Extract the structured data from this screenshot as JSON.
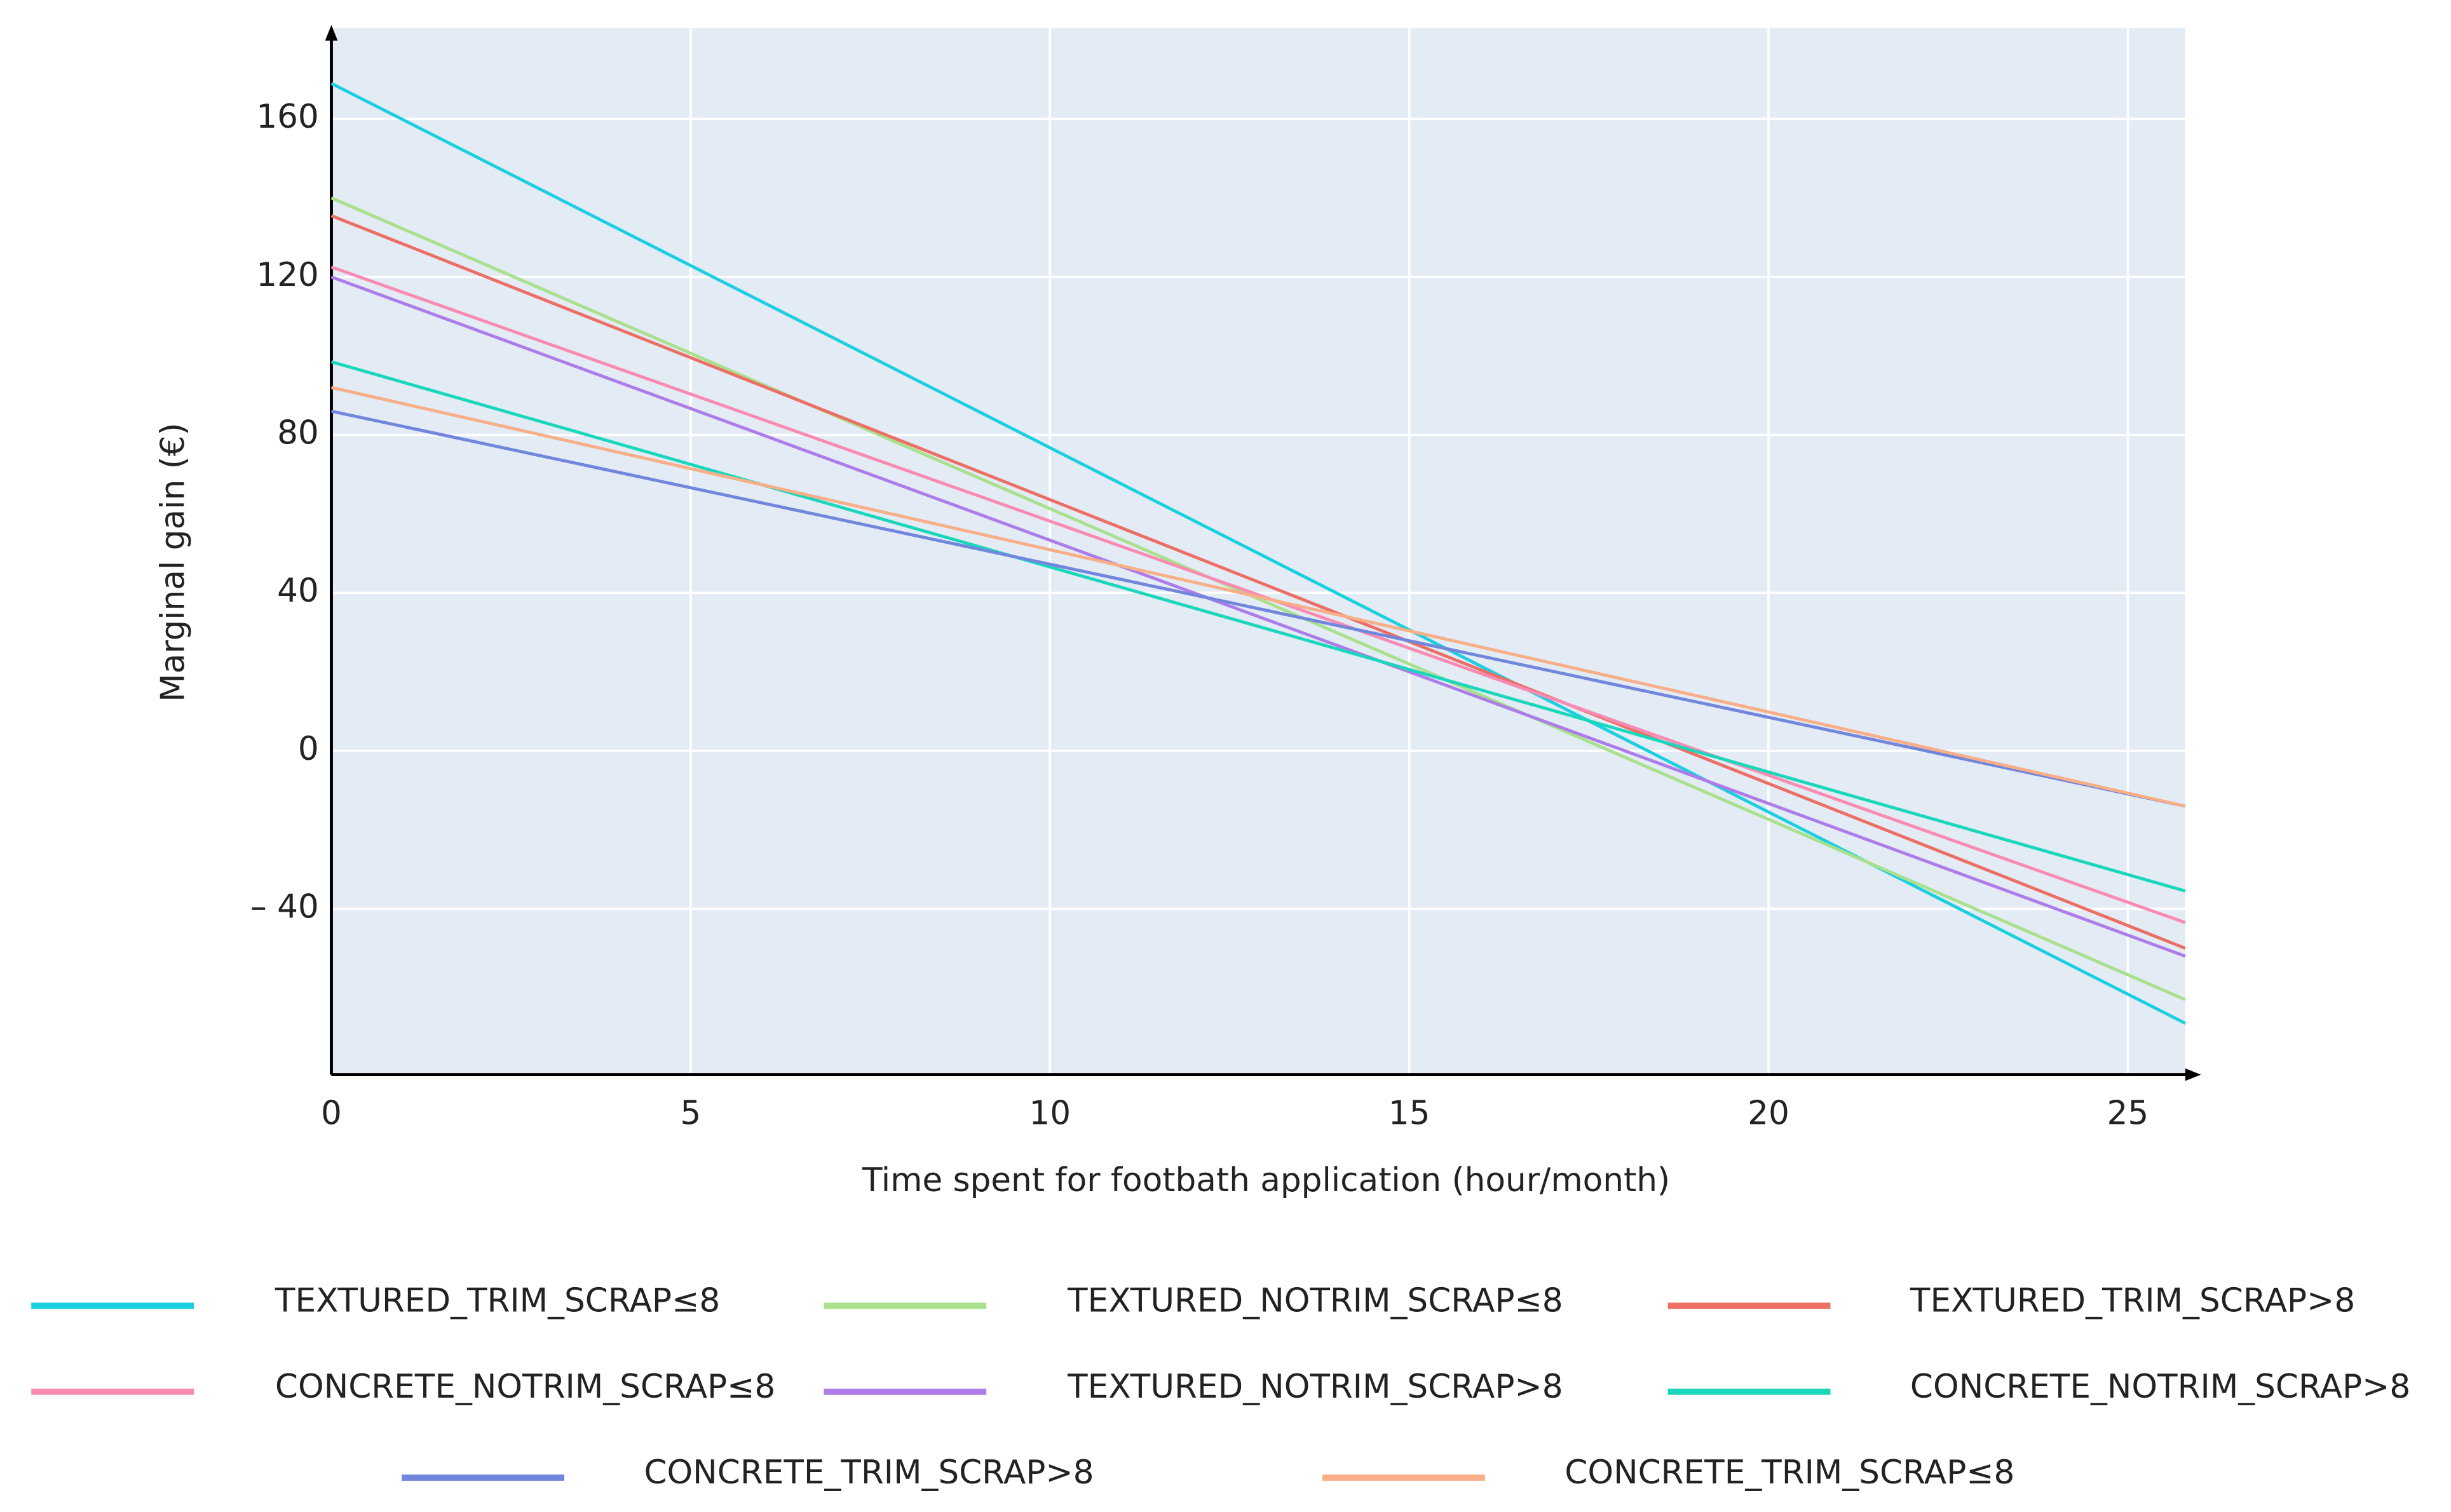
{
  "chart_data": {
    "type": "line",
    "x_label": "Time spent for footbath application (hour/month)",
    "y_label": "Marginal gain (€)",
    "x": [
      0,
      25.8
    ],
    "series": [
      {
        "name": "TEXTURED_TRIM_SCRAP≤8",
        "color": "#1ccfe0",
        "values": [
          169,
          -69
        ]
      },
      {
        "name": "TEXTURED_NOTRIM_SCRAP≤8",
        "color": "#a8e08c",
        "values": [
          140,
          -63
        ]
      },
      {
        "name": "TEXTURED_TRIM_SCRAP>8",
        "color": "#ec6f66",
        "values": [
          135.5,
          -50
        ]
      },
      {
        "name": "CONCRETE_NOTRIM_SCRAP≤8",
        "color": "#f98bb3",
        "values": [
          122.5,
          -43.5
        ]
      },
      {
        "name": "TEXTURED_NOTRIM_SCRAP>8",
        "color": "#ad7ce8",
        "values": [
          120,
          -52
        ]
      },
      {
        "name": "CONCRETE_NOTRIM_SCRAP>8",
        "color": "#1ad7bc",
        "values": [
          98.5,
          -35.5
        ]
      },
      {
        "name": "CONCRETE_TRIM_SCRAP>8",
        "color": "#7286dc",
        "values": [
          86,
          -14
        ]
      },
      {
        "name": "CONCRETE_TRIM_SCRAP≤8",
        "color": "#f8ae87",
        "values": [
          92,
          -14
        ]
      }
    ],
    "xlim": [
      0,
      25.8
    ],
    "xticks": [
      0,
      5,
      10,
      15,
      20,
      25
    ],
    "ylim": [
      -82,
      183
    ],
    "yticks": [
      {
        "value": -40,
        "label": "– 40"
      },
      0,
      40,
      80,
      120,
      160
    ],
    "grid": true,
    "legend": "bottom"
  }
}
